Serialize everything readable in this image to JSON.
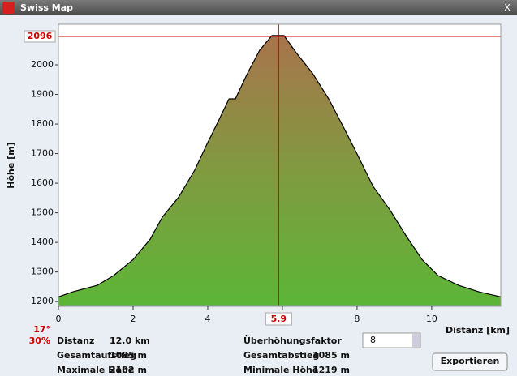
{
  "window": {
    "title": "Swiss Map",
    "close": "X"
  },
  "chart_data": {
    "type": "area",
    "x_label": "Distanz [km]",
    "y_label": "Höhe [m]",
    "x": [
      0,
      0.39,
      1.04,
      1.48,
      2.0,
      2.46,
      2.78,
      3.22,
      3.65,
      3.98,
      4.3,
      4.57,
      4.74,
      5.07,
      5.39,
      5.72,
      6.04,
      6.37,
      6.8,
      7.24,
      7.67,
      8.0,
      8.43,
      8.87,
      9.3,
      9.74,
      10.17,
      10.72,
      11.26,
      11.85
    ],
    "values": [
      1216,
      1233,
      1255,
      1288,
      1342,
      1411,
      1485,
      1553,
      1644,
      1732,
      1814,
      1885,
      1885,
      1973,
      2049,
      2099,
      2099,
      2041,
      1973,
      1885,
      1781,
      1699,
      1589,
      1512,
      1425,
      1342,
      1288,
      1255,
      1233,
      1216
    ],
    "xlim": [
      0,
      11.85
    ],
    "ylim": [
      1184,
      2137
    ],
    "xticks": [
      0,
      2,
      4,
      6,
      8,
      10
    ],
    "yticks": [
      1200,
      1300,
      1400,
      1500,
      1600,
      1700,
      1800,
      1900,
      2000
    ],
    "cursor": {
      "x": 5.9,
      "y": 2096,
      "slope_deg": "17°",
      "slope_pct": "30%"
    }
  },
  "stats": {
    "left": [
      {
        "label": "Distanz",
        "value": "12.0 km"
      },
      {
        "label": "Gesamtaufstieg",
        "value": "1085 m"
      },
      {
        "label": "Maximale Höhe",
        "value": "2102 m"
      }
    ],
    "right": [
      {
        "label": "Überhöhungsfaktor"
      },
      {
        "label": "Gesamtabstieg",
        "value": "1085 m"
      },
      {
        "label": "Minimale Höhe",
        "value": "1219 m"
      }
    ],
    "factor": "8",
    "button": "Exportieren"
  }
}
